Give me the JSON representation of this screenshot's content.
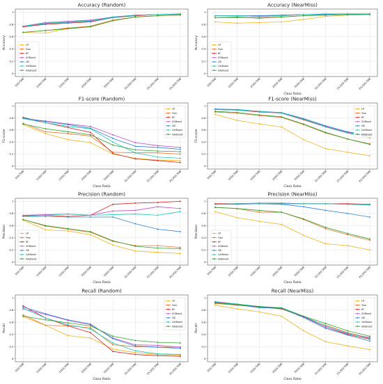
{
  "figure": {
    "background": "#ffffff"
  },
  "series_styles": [
    {
      "name": "LR",
      "color": "#f0b21a",
      "marker": "circle"
    },
    {
      "name": "Tree",
      "color": "#e8772a",
      "marker": "square"
    },
    {
      "name": "RF",
      "color": "#d62728",
      "marker": "circle"
    },
    {
      "name": "XGBoost",
      "color": "#bf4fc4",
      "marker": "circle"
    },
    {
      "name": "GB",
      "color": "#2a85d6",
      "marker": "circle"
    },
    {
      "name": "CatBoost",
      "color": "#1fc9b2",
      "marker": "circle"
    },
    {
      "name": "AdaBoost",
      "color": "#2ca02c",
      "marker": "circle"
    }
  ],
  "chart_data": [
    {
      "type": "line",
      "title": "Accuracy (Random)",
      "xlabel": "",
      "ylabel": "Accuracy",
      "ylim": [
        0,
        1
      ],
      "yticks": [
        "0",
        "0.2",
        "0.4",
        "0.6",
        "0.8",
        "1"
      ],
      "x": [
        "500:598",
        "1000:598",
        "1500:598",
        "2000:598",
        "5000:598",
        "10,000:598",
        "15,000:598",
        "20,000:598"
      ],
      "grid": true,
      "legend_position": "bottom-left",
      "series": [
        {
          "name": "LR",
          "values": [
            0.67,
            0.66,
            0.73,
            0.76,
            0.86,
            0.92,
            0.94,
            0.96
          ]
        },
        {
          "name": "Tree",
          "values": [
            0.67,
            0.7,
            0.74,
            0.77,
            0.87,
            0.92,
            0.94,
            0.95
          ]
        },
        {
          "name": "RF",
          "values": [
            0.76,
            0.8,
            0.82,
            0.84,
            0.91,
            0.94,
            0.96,
            0.97
          ]
        },
        {
          "name": "XGBoost",
          "values": [
            0.77,
            0.83,
            0.85,
            0.87,
            0.92,
            0.95,
            0.96,
            0.97
          ]
        },
        {
          "name": "GB",
          "values": [
            0.77,
            0.81,
            0.83,
            0.85,
            0.91,
            0.95,
            0.96,
            0.97
          ]
        },
        {
          "name": "CatBoost",
          "values": [
            0.77,
            0.82,
            0.84,
            0.86,
            0.92,
            0.95,
            0.96,
            0.97
          ]
        },
        {
          "name": "AdaBoost",
          "values": [
            0.67,
            0.7,
            0.73,
            0.76,
            0.86,
            0.92,
            0.94,
            0.96
          ]
        }
      ]
    },
    {
      "type": "line",
      "title": "Accuracy (NearMiss)",
      "xlabel": "Class Ratio",
      "ylabel": "Accuracy",
      "ylim": [
        0,
        1
      ],
      "yticks": [
        "0",
        "0.2",
        "0.4",
        "0.6",
        "0.8",
        "1"
      ],
      "x": [
        "500:598",
        "1000:598",
        "1500:598",
        "2000:598",
        "5000:598",
        "10,000:598",
        "15,000:598",
        "20,000:598"
      ],
      "grid": true,
      "legend_position": "bottom-left",
      "series": [
        {
          "name": "LR",
          "values": [
            0.84,
            0.82,
            0.83,
            0.84,
            0.88,
            0.93,
            0.95,
            0.96
          ]
        },
        {
          "name": "Tree",
          "values": [
            0.91,
            0.91,
            0.91,
            0.92,
            0.94,
            0.95,
            0.96,
            0.96
          ]
        },
        {
          "name": "RF",
          "values": [
            0.94,
            0.94,
            0.93,
            0.94,
            0.96,
            0.96,
            0.97,
            0.97
          ]
        },
        {
          "name": "XGBoost",
          "values": [
            0.94,
            0.94,
            0.94,
            0.95,
            0.96,
            0.96,
            0.97,
            0.97
          ]
        },
        {
          "name": "GB",
          "values": [
            0.94,
            0.94,
            0.94,
            0.95,
            0.96,
            0.97,
            0.97,
            0.97
          ]
        },
        {
          "name": "CatBoost",
          "values": [
            0.94,
            0.94,
            0.93,
            0.94,
            0.96,
            0.96,
            0.97,
            0.97
          ]
        },
        {
          "name": "AdaBoost",
          "values": [
            0.91,
            0.92,
            0.9,
            0.92,
            0.94,
            0.95,
            0.96,
            0.96
          ]
        }
      ]
    },
    {
      "type": "line",
      "title": "F1-score (Random)",
      "xlabel": "Class Ratio",
      "ylabel": "F1-score",
      "ylim": [
        0,
        1
      ],
      "yticks": [
        "0",
        "0.2",
        "0.4",
        "0.6",
        "0.8",
        "1"
      ],
      "x": [
        "500:598",
        "1000:598",
        "1500:598",
        "2000:598",
        "5000:598",
        "10,000:598",
        "15,000:598",
        "20,000:598"
      ],
      "grid": true,
      "legend_position": "top-right",
      "series": [
        {
          "name": "LR",
          "values": [
            0.69,
            0.54,
            0.44,
            0.39,
            0.2,
            0.13,
            0.1,
            0.09
          ]
        },
        {
          "name": "Tree",
          "values": [
            0.71,
            0.57,
            0.54,
            0.5,
            0.23,
            0.22,
            0.22,
            0.2
          ]
        },
        {
          "name": "RF",
          "values": [
            0.81,
            0.72,
            0.64,
            0.56,
            0.21,
            0.12,
            0.09,
            0.06
          ]
        },
        {
          "name": "XGBoost",
          "values": [
            0.79,
            0.75,
            0.7,
            0.66,
            0.52,
            0.39,
            0.34,
            0.31
          ]
        },
        {
          "name": "GB",
          "values": [
            0.8,
            0.74,
            0.69,
            0.63,
            0.46,
            0.33,
            0.31,
            0.28
          ]
        },
        {
          "name": "CatBoost",
          "values": [
            0.79,
            0.72,
            0.66,
            0.62,
            0.4,
            0.22,
            0.15,
            0.13
          ]
        },
        {
          "name": "AdaBoost",
          "values": [
            0.7,
            0.62,
            0.57,
            0.52,
            0.35,
            0.27,
            0.25,
            0.24
          ]
        }
      ]
    },
    {
      "type": "line",
      "title": "F1-score (NearMiss)",
      "xlabel": "Class Ratio",
      "ylabel": "F1-score",
      "ylim": [
        0,
        1
      ],
      "yticks": [
        "0",
        "0.2",
        "0.4",
        "0.6",
        "0.8",
        "1"
      ],
      "x": [
        "500:598",
        "1000:598",
        "1500:598",
        "2000:598",
        "5000:598",
        "10,000:598",
        "15,000:598",
        "20,000:598"
      ],
      "grid": true,
      "legend_position": "top-right",
      "series": [
        {
          "name": "LR",
          "values": [
            0.86,
            0.76,
            0.7,
            0.65,
            0.44,
            0.29,
            0.23,
            0.17
          ]
        },
        {
          "name": "Tree",
          "values": [
            0.9,
            0.88,
            0.84,
            0.81,
            0.69,
            0.55,
            0.45,
            0.37
          ]
        },
        {
          "name": "RF",
          "values": [
            0.94,
            0.93,
            0.9,
            0.88,
            0.77,
            0.65,
            0.55,
            0.47
          ]
        },
        {
          "name": "XGBoost",
          "values": [
            0.95,
            0.93,
            0.91,
            0.88,
            0.79,
            0.66,
            0.56,
            0.5
          ]
        },
        {
          "name": "GB",
          "values": [
            0.95,
            0.94,
            0.91,
            0.89,
            0.79,
            0.67,
            0.57,
            0.51
          ]
        },
        {
          "name": "CatBoost",
          "values": [
            0.94,
            0.93,
            0.91,
            0.88,
            0.78,
            0.65,
            0.55,
            0.48
          ]
        },
        {
          "name": "AdaBoost",
          "values": [
            0.91,
            0.89,
            0.85,
            0.82,
            0.7,
            0.56,
            0.45,
            0.36
          ]
        }
      ]
    },
    {
      "type": "line",
      "title": "Precision (Random)",
      "xlabel": "Class Ratio",
      "ylabel": "Precision",
      "ylim": [
        0,
        1
      ],
      "yticks": [
        "0",
        "0.2",
        "0.4",
        "0.6",
        "0.8",
        "1"
      ],
      "x": [
        "500:598",
        "1000:598",
        "1500:598",
        "2000:598",
        "5000:598",
        "10,000:598",
        "15,000:598",
        "20,000:598"
      ],
      "grid": true,
      "legend_position": "bottom-left",
      "series": [
        {
          "name": "LR",
          "values": [
            0.69,
            0.53,
            0.51,
            0.45,
            0.28,
            0.18,
            0.16,
            0.14
          ]
        },
        {
          "name": "Tree",
          "values": [
            0.7,
            0.59,
            0.54,
            0.49,
            0.34,
            0.27,
            0.27,
            0.24
          ]
        },
        {
          "name": "RF",
          "values": [
            0.76,
            0.77,
            0.75,
            0.77,
            0.95,
            0.97,
            0.98,
            1.0
          ]
        },
        {
          "name": "XGBoost",
          "values": [
            0.77,
            0.78,
            0.79,
            0.77,
            0.84,
            0.85,
            0.91,
            0.88
          ]
        },
        {
          "name": "GB",
          "values": [
            0.75,
            0.75,
            0.74,
            0.74,
            0.74,
            0.63,
            0.54,
            0.5
          ]
        },
        {
          "name": "CatBoost",
          "values": [
            0.75,
            0.77,
            0.79,
            0.77,
            0.78,
            0.79,
            0.77,
            0.83
          ]
        },
        {
          "name": "AdaBoost",
          "values": [
            0.7,
            0.6,
            0.55,
            0.5,
            0.35,
            0.26,
            0.23,
            0.22
          ]
        }
      ]
    },
    {
      "type": "line",
      "title": "Precision (NearMiss)",
      "xlabel": "Class Ratio",
      "ylabel": "Precision",
      "ylim": [
        0,
        1
      ],
      "yticks": [
        "0",
        "0.2",
        "0.4",
        "0.6",
        "0.8",
        "1"
      ],
      "x": [
        "500:598",
        "1000:598",
        "1500:598",
        "2000:598",
        "5000:598",
        "10,000:598",
        "15,000:598",
        "20,000:598"
      ],
      "grid": true,
      "legend_position": "bottom-left",
      "series": [
        {
          "name": "LR",
          "values": [
            0.83,
            0.73,
            0.67,
            0.62,
            0.44,
            0.3,
            0.27,
            0.2
          ]
        },
        {
          "name": "Tree",
          "values": [
            0.9,
            0.88,
            0.82,
            0.82,
            0.7,
            0.55,
            0.45,
            0.36
          ]
        },
        {
          "name": "RF",
          "values": [
            0.96,
            0.96,
            0.96,
            0.96,
            0.96,
            0.96,
            0.96,
            0.95
          ]
        },
        {
          "name": "XGBoost",
          "values": [
            0.95,
            0.96,
            0.97,
            0.97,
            0.96,
            0.96,
            0.95,
            0.95
          ]
        },
        {
          "name": "GB",
          "values": [
            0.95,
            0.95,
            0.96,
            0.95,
            0.91,
            0.85,
            0.8,
            0.74
          ]
        },
        {
          "name": "CatBoost",
          "values": [
            0.95,
            0.96,
            0.96,
            0.96,
            0.96,
            0.96,
            0.95,
            0.94
          ]
        },
        {
          "name": "AdaBoost",
          "values": [
            0.9,
            0.88,
            0.85,
            0.82,
            0.71,
            0.57,
            0.47,
            0.38
          ]
        }
      ]
    },
    {
      "type": "line",
      "title": "Recall (Random)",
      "xlabel": "Class Ratio",
      "ylabel": "Recall",
      "ylim": [
        0,
        1
      ],
      "yticks": [
        "0",
        "0.2",
        "0.4",
        "0.6",
        "0.8",
        "1"
      ],
      "x": [
        "500:598",
        "1000:598",
        "1500:598",
        "2000:598",
        "5000:598",
        "10,000:598",
        "15,000:598",
        "20,000:598"
      ],
      "grid": true,
      "legend_position": "top-right",
      "series": [
        {
          "name": "LR",
          "values": [
            0.69,
            0.55,
            0.38,
            0.34,
            0.16,
            0.1,
            0.07,
            0.06
          ]
        },
        {
          "name": "Tree",
          "values": [
            0.72,
            0.55,
            0.54,
            0.51,
            0.23,
            0.2,
            0.19,
            0.19
          ]
        },
        {
          "name": "RF",
          "values": [
            0.87,
            0.67,
            0.54,
            0.43,
            0.12,
            0.07,
            0.05,
            0.04
          ]
        },
        {
          "name": "XGBoost",
          "values": [
            0.82,
            0.73,
            0.63,
            0.56,
            0.34,
            0.23,
            0.22,
            0.19
          ]
        },
        {
          "name": "GB",
          "values": [
            0.85,
            0.74,
            0.64,
            0.57,
            0.33,
            0.21,
            0.19,
            0.17
          ]
        },
        {
          "name": "CatBoost",
          "values": [
            0.83,
            0.67,
            0.56,
            0.49,
            0.26,
            0.13,
            0.08,
            0.07
          ]
        },
        {
          "name": "AdaBoost",
          "values": [
            0.7,
            0.64,
            0.59,
            0.54,
            0.37,
            0.3,
            0.27,
            0.26
          ]
        }
      ]
    },
    {
      "type": "line",
      "title": "Recall (NearMiss)",
      "xlabel": "Class Ratio",
      "ylabel": "Recall",
      "ylim": [
        0,
        1
      ],
      "yticks": [
        "0",
        "0.2",
        "0.4",
        "0.6",
        "0.8",
        "1"
      ],
      "x": [
        "500:598",
        "1000:598",
        "1500:598",
        "2000:598",
        "5000:598",
        "10,000:598",
        "15,000:598",
        "20,000:598"
      ],
      "grid": true,
      "legend_position": "top-right",
      "series": [
        {
          "name": "LR",
          "values": [
            0.88,
            0.82,
            0.77,
            0.7,
            0.46,
            0.28,
            0.21,
            0.15
          ]
        },
        {
          "name": "Tree",
          "values": [
            0.91,
            0.88,
            0.85,
            0.83,
            0.68,
            0.55,
            0.43,
            0.34
          ]
        },
        {
          "name": "RF",
          "values": [
            0.92,
            0.89,
            0.85,
            0.82,
            0.69,
            0.52,
            0.4,
            0.32
          ]
        },
        {
          "name": "XGBoost",
          "values": [
            0.94,
            0.9,
            0.85,
            0.84,
            0.69,
            0.52,
            0.41,
            0.35
          ]
        },
        {
          "name": "GB",
          "values": [
            0.93,
            0.89,
            0.84,
            0.83,
            0.68,
            0.5,
            0.39,
            0.29
          ]
        },
        {
          "name": "CatBoost",
          "values": [
            0.93,
            0.9,
            0.86,
            0.84,
            0.7,
            0.54,
            0.42,
            0.33
          ]
        },
        {
          "name": "AdaBoost",
          "values": [
            0.92,
            0.89,
            0.86,
            0.83,
            0.7,
            0.58,
            0.46,
            0.37
          ]
        }
      ]
    }
  ]
}
